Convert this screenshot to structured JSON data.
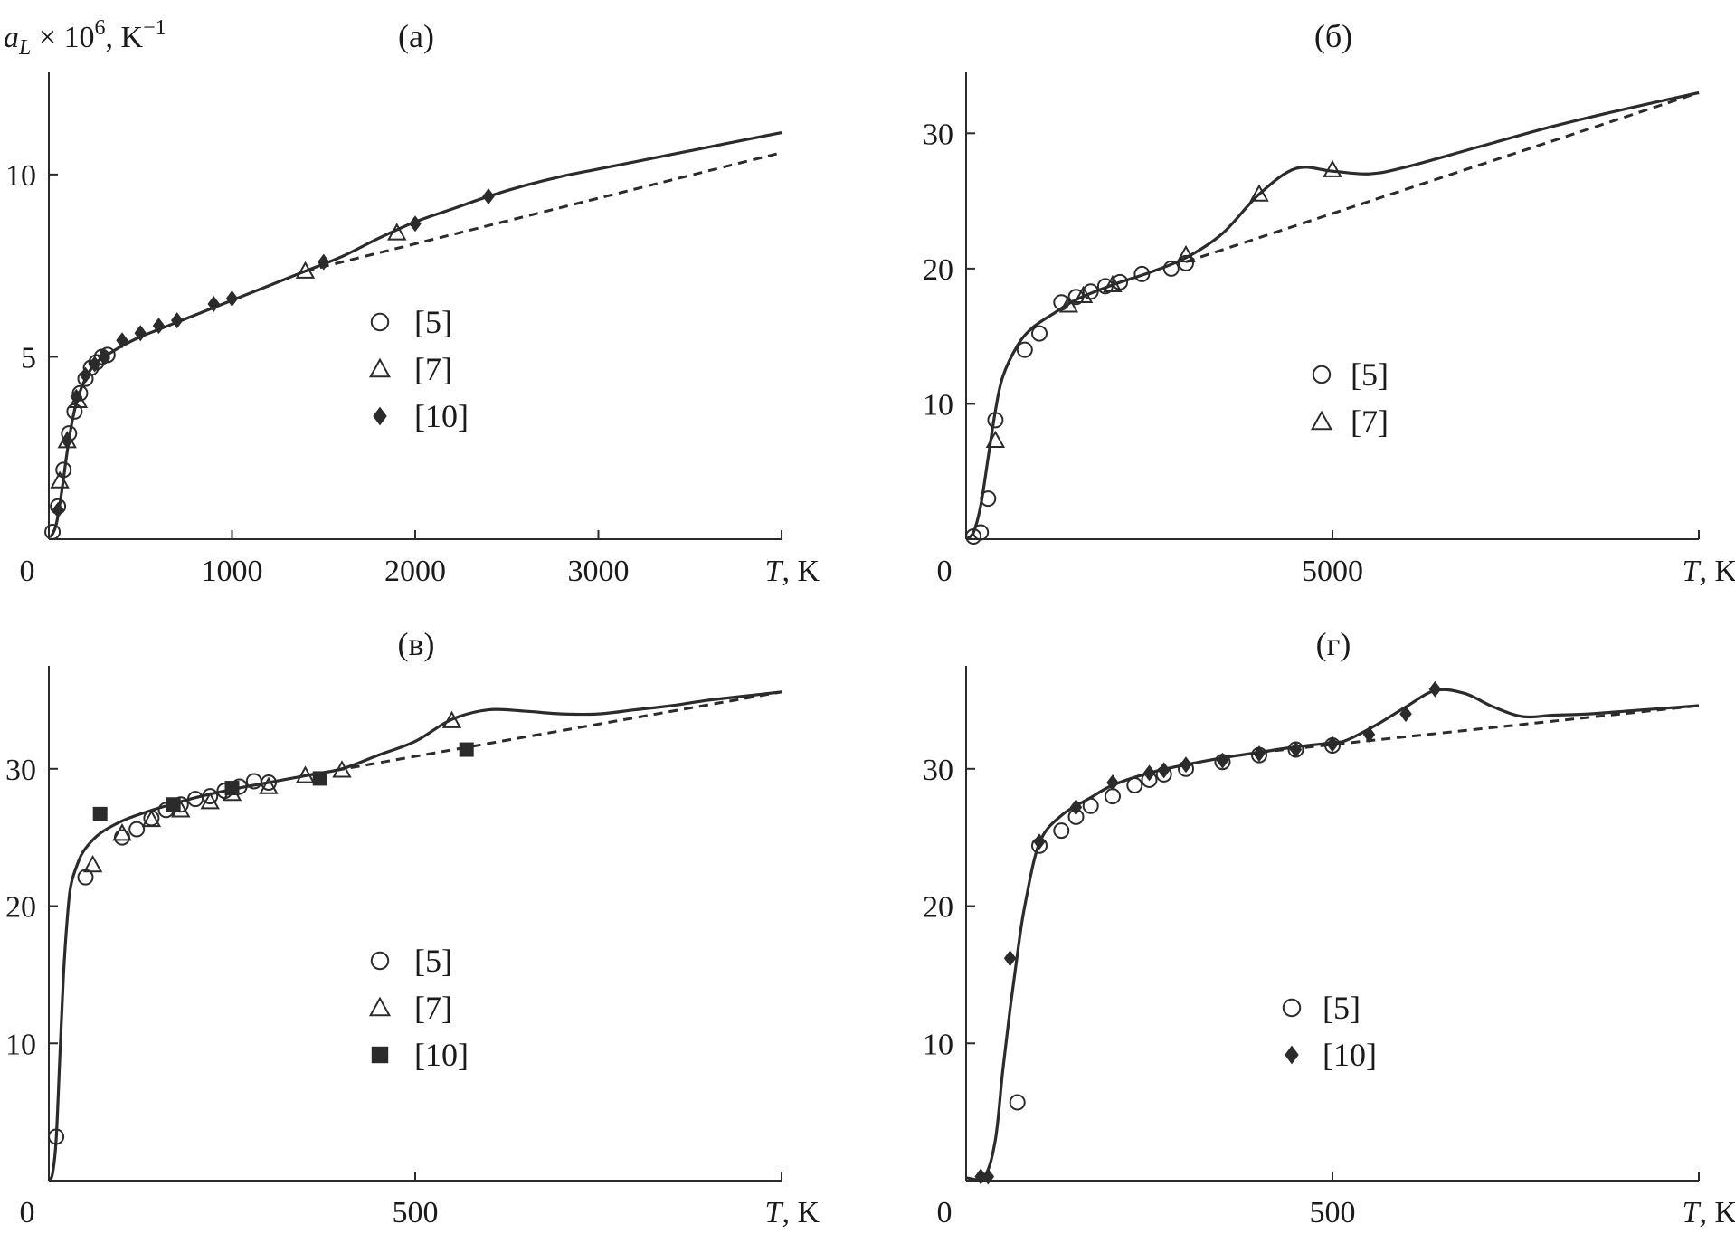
{
  "colors": {
    "ink": "#2b2b2b",
    "background": "#ffffff"
  },
  "chart_data": [
    {
      "type": "line",
      "panel": "(а)",
      "title": "(а)",
      "ylabel": {
        "main": "a",
        "sub": "L",
        "mid": " × 10",
        "sup1": "6",
        "tail": ", K",
        "sup2": "−1"
      },
      "xlabel": {
        "var": "T",
        "unit": ", K"
      },
      "origin_label": "0",
      "xlim": [
        0,
        4000
      ],
      "ylim": [
        0,
        12.8
      ],
      "xticks": [
        1000,
        2000,
        3000
      ],
      "yticks": [
        5,
        10
      ],
      "legend": [
        {
          "marker": "circle",
          "label": "[5]"
        },
        {
          "marker": "triangle",
          "label": "[7]"
        },
        {
          "marker": "diamond",
          "label": "[10]"
        }
      ],
      "series": [
        {
          "name": "solid",
          "style": "solid",
          "x": [
            10,
            40,
            70,
            100,
            130,
            160,
            200,
            250,
            300,
            350,
            400,
            500,
            600,
            700,
            800,
            900,
            1000,
            1200,
            1400,
            1600,
            1800,
            2000,
            2200,
            2400,
            2600,
            2800,
            3000,
            3200,
            3400,
            3600,
            3800,
            4000
          ],
          "y": [
            0.05,
            0.4,
            1.3,
            2.4,
            3.3,
            3.9,
            4.4,
            4.8,
            5.0,
            5.15,
            5.3,
            5.55,
            5.75,
            5.95,
            6.15,
            6.35,
            6.55,
            6.95,
            7.35,
            7.75,
            8.25,
            8.7,
            9.05,
            9.4,
            9.7,
            9.95,
            10.15,
            10.35,
            10.55,
            10.75,
            10.95,
            11.15
          ]
        },
        {
          "name": "dashed",
          "style": "dashed",
          "x": [
            1400,
            4000
          ],
          "y": [
            7.35,
            10.6
          ]
        },
        {
          "name": "[5]",
          "marker": "circle",
          "x": [
            20,
            50,
            80,
            110,
            140,
            170,
            200,
            230,
            260,
            290,
            320
          ],
          "y": [
            0.2,
            0.9,
            1.9,
            2.9,
            3.5,
            4.0,
            4.4,
            4.7,
            4.85,
            5.0,
            5.05
          ]
        },
        {
          "name": "[7]",
          "marker": "triangle",
          "x": [
            60,
            100,
            160,
            1400,
            1900
          ],
          "y": [
            1.6,
            2.7,
            3.8,
            7.35,
            8.4
          ]
        },
        {
          "name": "[10]",
          "marker": "diamond",
          "x": [
            50,
            100,
            150,
            200,
            250,
            300,
            400,
            500,
            600,
            700,
            900,
            1000,
            1500,
            2000,
            2400
          ],
          "y": [
            0.8,
            2.7,
            3.9,
            4.5,
            4.8,
            5.0,
            5.45,
            5.65,
            5.85,
            6.0,
            6.45,
            6.6,
            7.6,
            8.65,
            9.4
          ]
        }
      ]
    },
    {
      "type": "line",
      "panel": "(б)",
      "title": "(б)",
      "xlabel": {
        "var": "T",
        "unit": ", K"
      },
      "origin_label": "0",
      "xlim": [
        0,
        10000
      ],
      "ylim": [
        0,
        34.5
      ],
      "xticks": [
        5000
      ],
      "yticks": [
        10,
        20,
        30
      ],
      "legend": [
        {
          "marker": "circle",
          "label": "[5]"
        },
        {
          "marker": "triangle",
          "label": "[7]"
        }
      ],
      "series": [
        {
          "name": "solid",
          "style": "solid",
          "x": [
            0,
            100,
            200,
            300,
            400,
            500,
            700,
            900,
            1200,
            1500,
            2000,
            2500,
            3000,
            3500,
            4000,
            4500,
            5000,
            5500,
            6000,
            7000,
            8000,
            9000,
            10000
          ],
          "y": [
            0,
            0.5,
            2.5,
            6.0,
            9.5,
            12.0,
            14.3,
            15.6,
            16.7,
            17.7,
            18.8,
            19.7,
            20.8,
            22.6,
            25.5,
            27.4,
            27.2,
            27.0,
            27.5,
            29.0,
            30.5,
            31.8,
            33.0
          ]
        },
        {
          "name": "dashed",
          "style": "dashed",
          "x": [
            3000,
            10000
          ],
          "y": [
            20.5,
            33.0
          ]
        },
        {
          "name": "[5]",
          "marker": "circle",
          "x": [
            100,
            200,
            300,
            400,
            800,
            1000,
            1300,
            1500,
            1700,
            1900,
            2100,
            2400,
            2800,
            3000
          ],
          "y": [
            0.2,
            0.5,
            3.0,
            8.8,
            14.0,
            15.2,
            17.5,
            17.9,
            18.3,
            18.7,
            19.0,
            19.6,
            20.0,
            20.4
          ]
        },
        {
          "name": "[7]",
          "marker": "triangle",
          "x": [
            400,
            1400,
            1600,
            2000,
            3000,
            4000,
            5000
          ],
          "y": [
            7.3,
            17.3,
            18.0,
            18.8,
            21.0,
            25.5,
            27.3
          ]
        }
      ]
    },
    {
      "type": "line",
      "panel": "(в)",
      "title": "(в)",
      "xlabel": {
        "var": "T",
        "unit": ", K"
      },
      "origin_label": "0",
      "xlim": [
        0,
        1000
      ],
      "ylim": [
        0,
        37.5
      ],
      "xticks": [
        500
      ],
      "yticks": [
        10,
        20,
        30
      ],
      "legend": [
        {
          "marker": "circle",
          "label": "[5]"
        },
        {
          "marker": "triangle",
          "label": "[7]"
        },
        {
          "marker": "square",
          "label": "[10]"
        }
      ],
      "series": [
        {
          "name": "solid",
          "style": "solid",
          "x": [
            0,
            5,
            10,
            15,
            20,
            25,
            30,
            40,
            50,
            70,
            100,
            130,
            160,
            200,
            250,
            300,
            350,
            400,
            450,
            500,
            550,
            600,
            650,
            700,
            750,
            800,
            850,
            900,
            950,
            1000
          ],
          "y": [
            0,
            0.5,
            3,
            9,
            15,
            19,
            21.5,
            23.2,
            24.2,
            25.3,
            26.2,
            26.8,
            27.3,
            27.9,
            28.5,
            29.0,
            29.5,
            30.0,
            31.0,
            32.0,
            33.6,
            34.3,
            34.2,
            34.0,
            34.0,
            34.3,
            34.6,
            35.0,
            35.3,
            35.6
          ]
        },
        {
          "name": "dashed",
          "style": "dashed",
          "x": [
            350,
            1000
          ],
          "y": [
            29.5,
            35.6
          ]
        },
        {
          "name": "[5]",
          "marker": "circle",
          "x": [
            10,
            50,
            100,
            120,
            140,
            160,
            180,
            200,
            220,
            240,
            260,
            280,
            300
          ],
          "y": [
            3.2,
            22.1,
            25.0,
            25.6,
            26.4,
            27.0,
            27.4,
            27.8,
            28.0,
            28.4,
            28.7,
            29.1,
            29.0
          ]
        },
        {
          "name": "[7]",
          "marker": "triangle",
          "x": [
            60,
            100,
            140,
            180,
            220,
            250,
            300,
            350,
            400,
            550
          ],
          "y": [
            23.0,
            25.3,
            26.3,
            27.0,
            27.6,
            28.2,
            28.7,
            29.5,
            29.9,
            33.5
          ]
        },
        {
          "name": "[10]",
          "marker": "square",
          "x": [
            70,
            170,
            250,
            370,
            570
          ],
          "y": [
            26.7,
            27.4,
            28.6,
            29.3,
            31.4
          ]
        }
      ]
    },
    {
      "type": "line",
      "panel": "(г)",
      "title": "(г)",
      "xlabel": {
        "var": "T",
        "unit": ", K"
      },
      "origin_label": "0",
      "xlim": [
        0,
        1000
      ],
      "ylim": [
        0,
        37.5
      ],
      "xticks": [
        500
      ],
      "yticks": [
        10,
        20,
        30
      ],
      "legend": [
        {
          "marker": "circle",
          "label": "[5]"
        },
        {
          "marker": "diamond",
          "label": "[10]"
        }
      ],
      "series": [
        {
          "name": "solid",
          "style": "solid",
          "x": [
            0,
            25,
            40,
            50,
            60,
            70,
            80,
            100,
            130,
            170,
            200,
            250,
            300,
            350,
            400,
            450,
            500,
            520,
            560,
            600,
            640,
            680,
            720,
            760,
            800,
            850,
            900,
            950,
            1000
          ],
          "y": [
            0.2,
            0.3,
            3,
            8,
            12.5,
            16.5,
            20,
            24.6,
            26.6,
            27.9,
            28.8,
            29.7,
            30.3,
            30.8,
            31.2,
            31.6,
            31.9,
            32.1,
            33.2,
            34.5,
            35.7,
            35.5,
            34.5,
            33.8,
            33.9,
            34.0,
            34.2,
            34.4,
            34.6
          ]
        },
        {
          "name": "dashed",
          "style": "dashed",
          "x": [
            400,
            1000
          ],
          "y": [
            31.2,
            34.6
          ]
        },
        {
          "name": "[5]",
          "marker": "circle",
          "x": [
            70,
            100,
            130,
            150,
            170,
            200,
            230,
            250,
            270,
            300,
            350,
            400,
            450,
            500
          ],
          "y": [
            5.7,
            24.4,
            25.5,
            26.5,
            27.3,
            28.0,
            28.8,
            29.2,
            29.6,
            30.0,
            30.5,
            31.0,
            31.4,
            31.7
          ]
        },
        {
          "name": "[10]",
          "marker": "diamond",
          "x": [
            20,
            30,
            60,
            100,
            150,
            200,
            250,
            270,
            300,
            350,
            400,
            450,
            500,
            550,
            600,
            640
          ],
          "y": [
            0.3,
            0.3,
            16.2,
            24.7,
            27.2,
            29.0,
            29.7,
            29.9,
            30.3,
            30.6,
            31.1,
            31.4,
            31.8,
            32.5,
            34.0,
            35.8
          ]
        }
      ]
    }
  ]
}
